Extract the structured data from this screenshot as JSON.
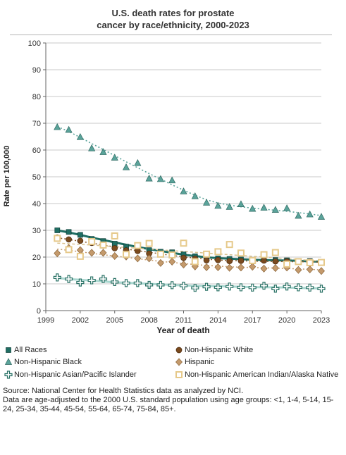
{
  "title_line1": "U.S. death rates for prostate",
  "title_line2": "cancer by race/ethnicity, 2000-2023",
  "source_line1": "Source: National Center for Health Statistics data as analyzed by NCI.",
  "source_line2": "Data are age-adjusted to the 2000 U.S. standard population using age groups: <1, 1-4, 5-14, 15-24, 25-34, 35-44, 45-54, 55-64, 65-74, 75-84, 85+.",
  "chart_data": {
    "type": "scatter",
    "title": "U.S. death rates for prostate cancer by race/ethnicity, 2000-2023",
    "xlabel": "Year of death",
    "ylabel": "Rate per 100,000",
    "xlim": [
      1999,
      2023
    ],
    "ylim": [
      0,
      100
    ],
    "xticks": [
      1999,
      2002,
      2005,
      2008,
      2011,
      2014,
      2017,
      2020,
      2023
    ],
    "yticks": [
      0,
      10,
      20,
      30,
      40,
      50,
      60,
      70,
      80,
      90,
      100
    ],
    "grid": "horizontal",
    "legend_position": "bottom",
    "x": [
      2000,
      2001,
      2002,
      2003,
      2004,
      2005,
      2006,
      2007,
      2008,
      2009,
      2010,
      2011,
      2012,
      2013,
      2014,
      2015,
      2016,
      2017,
      2018,
      2019,
      2020,
      2021,
      2022,
      2023
    ],
    "series": [
      {
        "name": "All Races",
        "marker": "square",
        "color": "#1f6e63",
        "values": [
          30.0,
          29.4,
          28.3,
          26.8,
          26.0,
          25.0,
          23.9,
          23.6,
          22.6,
          22.0,
          21.8,
          21.0,
          20.3,
          19.6,
          19.5,
          19.3,
          19.1,
          19.0,
          19.0,
          18.9,
          18.8,
          18.6,
          18.5,
          18.0
        ],
        "trend": [
          30.0,
          29.2,
          28.3,
          27.3,
          26.4,
          25.5,
          24.6,
          23.8,
          23.0,
          22.3,
          21.6,
          20.9,
          20.4,
          19.9,
          19.6,
          19.4,
          19.2,
          19.0,
          18.9,
          18.8,
          18.7,
          18.6,
          18.4,
          18.3
        ]
      },
      {
        "name": "Non-Hispanic White",
        "marker": "circle",
        "color": "#7a4a1e",
        "values": [
          27.3,
          26.6,
          26.1,
          25.3,
          24.3,
          23.3,
          22.5,
          22.3,
          21.3,
          21.0,
          20.6,
          19.7,
          19.4,
          18.8,
          18.9,
          18.5,
          18.6,
          18.4,
          18.7,
          18.4,
          18.4,
          18.3,
          18.3,
          17.9
        ],
        "trend": [
          27.2,
          26.6,
          25.9,
          25.2,
          24.5,
          23.8,
          23.0,
          22.4,
          21.8,
          21.2,
          20.6,
          20.1,
          19.6,
          19.2,
          18.9,
          18.7,
          18.6,
          18.5,
          18.4,
          18.4,
          18.3,
          18.3,
          18.2,
          18.1
        ]
      },
      {
        "name": "Non-Hispanic Black",
        "marker": "triangle",
        "color": "#5aa39a",
        "values": [
          68.5,
          67.5,
          64.8,
          60.6,
          59.2,
          57.1,
          53.5,
          55.1,
          49.3,
          49.1,
          48.6,
          44.5,
          42.7,
          40.3,
          39.1,
          38.7,
          39.7,
          38.0,
          38.4,
          37.6,
          38.2,
          35.4,
          35.9,
          35.0
        ],
        "trend": [
          68.8,
          66.9,
          64.7,
          62.4,
          60.2,
          57.9,
          55.6,
          53.4,
          51.2,
          49.1,
          47.0,
          45.0,
          43.1,
          41.4,
          40.2,
          39.4,
          38.8,
          38.3,
          37.9,
          37.5,
          37.1,
          36.6,
          36.1,
          35.5
        ]
      },
      {
        "name": "Hispanic",
        "marker": "diamond",
        "color": "#c49a6c",
        "values": [
          21.4,
          23.4,
          22.6,
          21.6,
          21.6,
          20.4,
          20.2,
          19.5,
          19.5,
          17.8,
          18.3,
          17.2,
          16.5,
          16.2,
          16.2,
          16.0,
          16.1,
          16.4,
          15.7,
          15.9,
          16.1,
          15.2,
          15.4,
          14.8
        ],
        "trend": [
          23.0,
          22.5,
          22.0,
          21.4,
          20.9,
          20.4,
          19.9,
          19.4,
          18.9,
          18.4,
          18.0,
          17.6,
          17.2,
          16.9,
          16.6,
          16.4,
          16.2,
          16.1,
          16.0,
          15.9,
          15.7,
          15.6,
          15.4,
          15.2
        ]
      },
      {
        "name": "Non-Hispanic Asian/Pacific Islander",
        "marker": "plus",
        "color": "#2a7266",
        "values": [
          12.4,
          11.8,
          10.5,
          11.3,
          11.8,
          10.7,
          10.3,
          10.3,
          9.6,
          9.6,
          9.5,
          9.3,
          8.5,
          8.9,
          8.7,
          9.0,
          8.7,
          8.6,
          9.3,
          8.2,
          9.0,
          8.7,
          8.6,
          8.2
        ],
        "trend": [
          12.2,
          11.8,
          11.5,
          11.2,
          10.9,
          10.6,
          10.4,
          10.2,
          10.0,
          9.8,
          9.6,
          9.4,
          9.3,
          9.2,
          9.1,
          9.0,
          8.9,
          8.8,
          8.7,
          8.7,
          8.6,
          8.5,
          8.4,
          8.3
        ]
      },
      {
        "name": "Non-Hispanic American Indian/Alaska Native",
        "marker": "open-square",
        "color": "#e6c98a",
        "values": [
          27.0,
          22.8,
          20.3,
          25.8,
          24.5,
          27.9,
          21.0,
          24.3,
          25.1,
          21.1,
          20.8,
          25.2,
          18.3,
          21.1,
          22.0,
          24.7,
          21.5,
          18.7,
          20.9,
          21.7,
          17.4,
          18.3,
          17.9,
          18.0
        ],
        "trend": [
          25.2,
          25.0,
          24.7,
          24.5,
          24.2,
          23.9,
          23.6,
          23.3,
          23.0,
          22.7,
          22.4,
          22.1,
          21.8,
          21.5,
          21.2,
          20.9,
          20.6,
          20.3,
          20.0,
          19.7,
          19.4,
          19.1,
          18.8,
          18.5
        ]
      }
    ]
  }
}
